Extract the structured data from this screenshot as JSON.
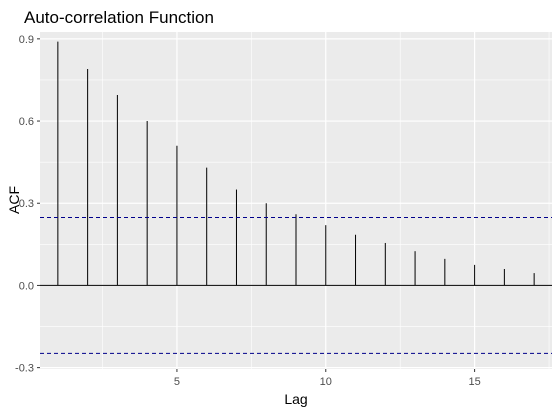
{
  "chart_data": {
    "type": "bar",
    "title": "Auto-correlation Function",
    "xlabel": "Lag",
    "ylabel": "ACF",
    "x": [
      1,
      2,
      3,
      4,
      5,
      6,
      7,
      8,
      9,
      10,
      11,
      12,
      13,
      14,
      15,
      16,
      17
    ],
    "values": [
      0.89,
      0.79,
      0.695,
      0.6,
      0.51,
      0.43,
      0.35,
      0.3,
      0.26,
      0.22,
      0.185,
      0.155,
      0.125,
      0.097,
      0.075,
      0.06,
      0.045
    ],
    "xlim": [
      0.4,
      17.6
    ],
    "ylim": [
      -0.305,
      0.925
    ],
    "x_ticks": [
      5,
      10,
      15
    ],
    "y_ticks": [
      -0.3,
      0.0,
      0.3,
      0.6,
      0.9
    ],
    "x_tick_labels": [
      "5",
      "10",
      "15"
    ],
    "y_tick_labels": [
      "-0.3",
      "0.0",
      "0.3",
      "0.6",
      "0.9"
    ],
    "confidence_bounds": [
      0.248,
      -0.248
    ],
    "grid": true,
    "colors": {
      "panel": "#ebebeb",
      "grid": "#ffffff",
      "bar": "#000000",
      "bounds": "#00008b",
      "tick_text": "#4d4d4d"
    }
  }
}
